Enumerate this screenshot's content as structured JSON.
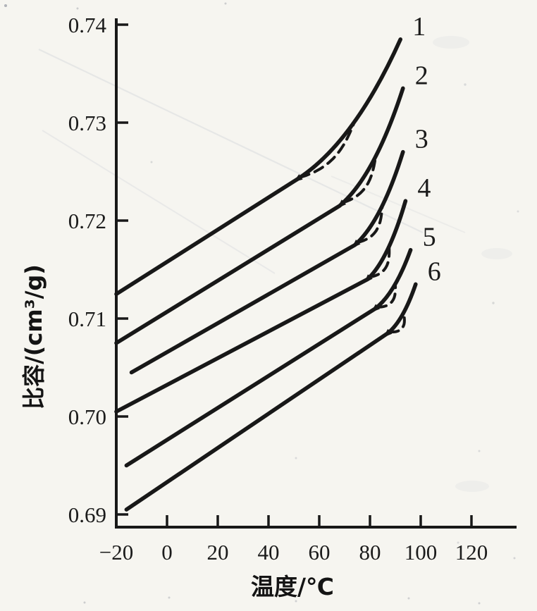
{
  "colors": {
    "ink": "#181818",
    "paper": "#f6f5f0"
  },
  "chart_data": {
    "type": "line",
    "title": "",
    "xlabel": "温度/℃",
    "ylabel": "比容/(cm³/g)",
    "xlim": [
      -20,
      138
    ],
    "ylim": [
      0.69,
      0.7405
    ],
    "grid": false,
    "legend_position": "numeric-labels-at-curve-ends",
    "x_ticks": [
      {
        "v": -20,
        "label": "−20"
      },
      {
        "v": 0,
        "label": "0"
      },
      {
        "v": 20,
        "label": "20"
      },
      {
        "v": 40,
        "label": "40"
      },
      {
        "v": 60,
        "label": "60"
      },
      {
        "v": 80,
        "label": "80"
      },
      {
        "v": 100,
        "label": "100"
      },
      {
        "v": 120,
        "label": "120"
      }
    ],
    "y_ticks": [
      {
        "v": 0.69,
        "label": "0.69"
      },
      {
        "v": 0.7,
        "label": "0.70"
      },
      {
        "v": 0.71,
        "label": "0.71"
      },
      {
        "v": 0.72,
        "label": "0.72"
      },
      {
        "v": 0.73,
        "label": "0.73"
      },
      {
        "v": 0.74,
        "label": "0.74"
      }
    ],
    "series": [
      {
        "label": "1",
        "start": [
          -20,
          0.7125
        ],
        "knee": [
          50,
          0.724
        ],
        "end": [
          92,
          0.7385
        ],
        "dashed_transition": true
      },
      {
        "label": "2",
        "start": [
          -20,
          0.7075
        ],
        "knee": [
          68,
          0.7215
        ],
        "end": [
          93,
          0.7335
        ],
        "dashed_transition": true
      },
      {
        "label": "3",
        "start": [
          -14,
          0.7045
        ],
        "knee": [
          74,
          0.7175
        ],
        "end": [
          93,
          0.727
        ],
        "dashed_transition": true
      },
      {
        "label": "4",
        "start": [
          -20,
          0.7005
        ],
        "knee": [
          79,
          0.714
        ],
        "end": [
          94,
          0.722
        ],
        "dashed_transition": true
      },
      {
        "label": "5",
        "start": [
          -16,
          0.695
        ],
        "knee": [
          82,
          0.711
        ],
        "end": [
          96,
          0.717
        ],
        "dashed_transition": true
      },
      {
        "label": "6",
        "start": [
          -16,
          0.6905
        ],
        "knee": [
          87,
          0.7085
        ],
        "end": [
          98,
          0.7135
        ],
        "dashed_transition": true
      }
    ]
  }
}
